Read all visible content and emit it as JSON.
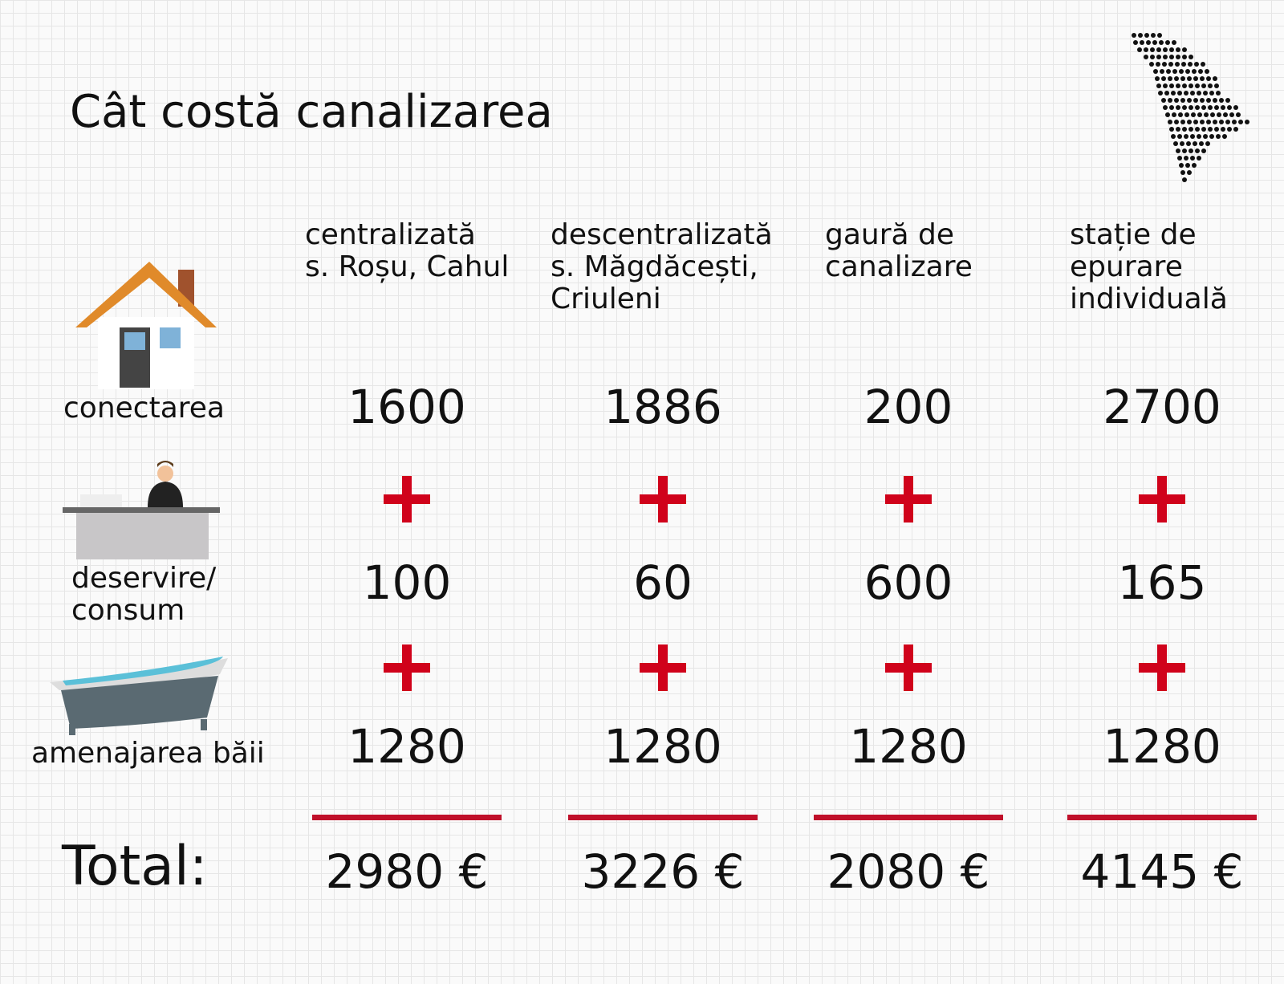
{
  "title": "Cât costă canalizarea",
  "table": {
    "columns": [
      [
        "centralizată",
        "s. Roșu, Cahul"
      ],
      [
        "descentralizată",
        "s. Măgdăcești,",
        "Criuleni"
      ],
      [
        "gaură de",
        "canalizare"
      ],
      [
        "stație de",
        "epurare",
        "individuală"
      ]
    ],
    "rows": [
      {
        "label": [
          "conectarea"
        ],
        "values": [
          1600,
          1886,
          200,
          2700
        ]
      },
      {
        "label": [
          "deservire/",
          "consum"
        ],
        "values": [
          100,
          60,
          600,
          165
        ]
      },
      {
        "label": [
          "amenajarea băii"
        ],
        "values": [
          1280,
          1280,
          1280,
          1280
        ]
      }
    ],
    "total": {
      "label": "Total:",
      "values": [
        "2980 €",
        "3226 €",
        "2080 €",
        "4145 €"
      ]
    }
  }
}
